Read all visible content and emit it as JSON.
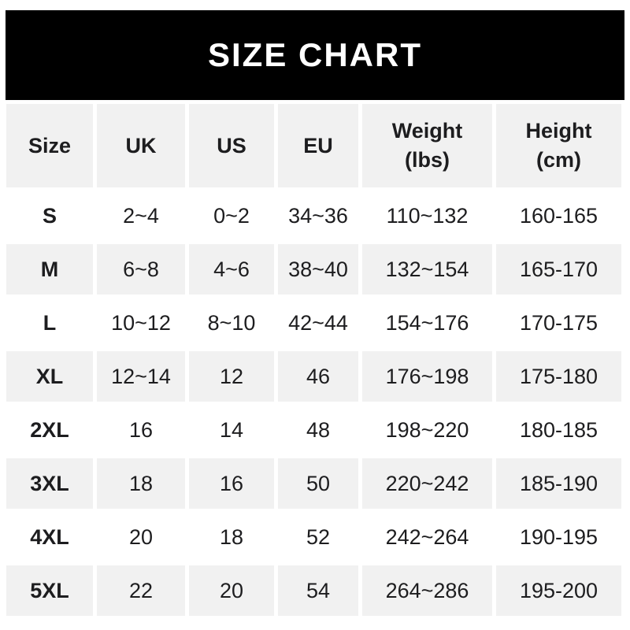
{
  "banner": {
    "title": "SIZE CHART"
  },
  "table": {
    "headers": [
      {
        "label": "Size",
        "sub": ""
      },
      {
        "label": "UK",
        "sub": ""
      },
      {
        "label": "US",
        "sub": ""
      },
      {
        "label": "EU",
        "sub": ""
      },
      {
        "label": "Weight",
        "sub": "(lbs)"
      },
      {
        "label": "Height",
        "sub": "(cm)"
      }
    ]
  },
  "chart_data": {
    "type": "table",
    "title": "SIZE CHART",
    "columns": [
      "Size",
      "UK",
      "US",
      "EU",
      "Weight (lbs)",
      "Height (cm)"
    ],
    "rows": [
      [
        "S",
        "2~4",
        "0~2",
        "34~36",
        "110~132",
        "160-165"
      ],
      [
        "M",
        "6~8",
        "4~6",
        "38~40",
        "132~154",
        "165-170"
      ],
      [
        "L",
        "10~12",
        "8~10",
        "42~44",
        "154~176",
        "170-175"
      ],
      [
        "XL",
        "12~14",
        "12",
        "46",
        "176~198",
        "175-180"
      ],
      [
        "2XL",
        "16",
        "14",
        "48",
        "198~220",
        "180-185"
      ],
      [
        "3XL",
        "18",
        "16",
        "50",
        "220~242",
        "185-190"
      ],
      [
        "4XL",
        "20",
        "18",
        "52",
        "242~264",
        "190-195"
      ],
      [
        "5XL",
        "22",
        "20",
        "54",
        "264~286",
        "195-200"
      ]
    ]
  },
  "colors": {
    "banner_bg": "#000000",
    "banner_text": "#ffffff",
    "row_bg": "#ffffff",
    "row_alt_bg": "#f1f1f1",
    "header_bg": "#f1f1f1",
    "text": "#1d1d1f"
  }
}
